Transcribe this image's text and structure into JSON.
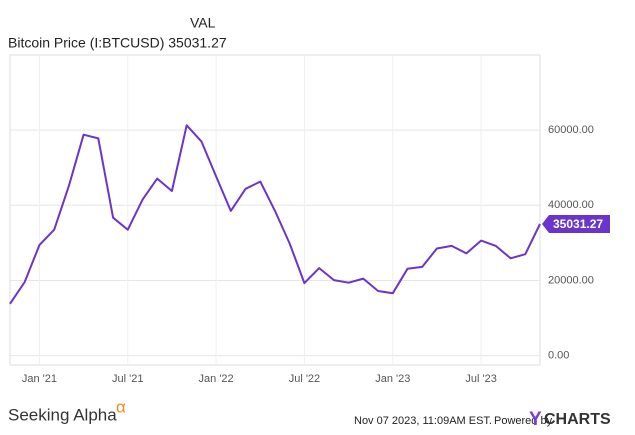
{
  "chart_data": {
    "type": "line",
    "title": "VAL",
    "subtitle": "Bitcoin Price (I:BTCUSD) 35031.27",
    "x": [
      "2020-11",
      "2020-12",
      "2021-01",
      "2021-02",
      "2021-03",
      "2021-04",
      "2021-05",
      "2021-06",
      "2021-07",
      "2021-08",
      "2021-09",
      "2021-10",
      "2021-11",
      "2021-12",
      "2022-01",
      "2022-02",
      "2022-03",
      "2022-04",
      "2022-05",
      "2022-06",
      "2022-07",
      "2022-08",
      "2022-09",
      "2022-10",
      "2022-11",
      "2022-12",
      "2023-01",
      "2023-02",
      "2023-03",
      "2023-04",
      "2023-05",
      "2023-06",
      "2023-07",
      "2023-08",
      "2023-09",
      "2023-10",
      "2023-11"
    ],
    "series": [
      {
        "name": "Bitcoin Price (I:BTCUSD)",
        "color": "#6a35c9",
        "values": [
          13800,
          19600,
          29400,
          33500,
          45200,
          58800,
          57800,
          36700,
          33500,
          41500,
          47100,
          43800,
          61300,
          57000,
          47700,
          38500,
          44400,
          46300,
          38500,
          29800,
          19300,
          23300,
          20100,
          19400,
          20500,
          17200,
          16600,
          23100,
          23600,
          28500,
          29200,
          27200,
          30600,
          29200,
          25900,
          27000,
          35031.27
        ]
      }
    ],
    "xlim": [
      "2020-11",
      "2023-11"
    ],
    "xticks": [
      {
        "value": "2021-01",
        "label": "Jan '21"
      },
      {
        "value": "2021-07",
        "label": "Jul '21"
      },
      {
        "value": "2022-01",
        "label": "Jan '22"
      },
      {
        "value": "2022-07",
        "label": "Jul '22"
      },
      {
        "value": "2023-01",
        "label": "Jan '23"
      },
      {
        "value": "2023-07",
        "label": "Jul '23"
      }
    ],
    "ylim": [
      -2500,
      80000
    ],
    "yticks": [
      {
        "value": 0,
        "label": "0.00"
      },
      {
        "value": 20000,
        "label": "20000.00"
      },
      {
        "value": 40000,
        "label": "40000.00"
      },
      {
        "value": 60000,
        "label": "60000.00"
      }
    ],
    "grid": true
  },
  "footer": {
    "brand": "Seeking Alpha",
    "brand_mark": "α",
    "timestamp": "Nov 07 2023, 11:09AM EST.",
    "powered": "Powered by",
    "logo_y": "Y",
    "logo_rest": "CHARTS"
  }
}
